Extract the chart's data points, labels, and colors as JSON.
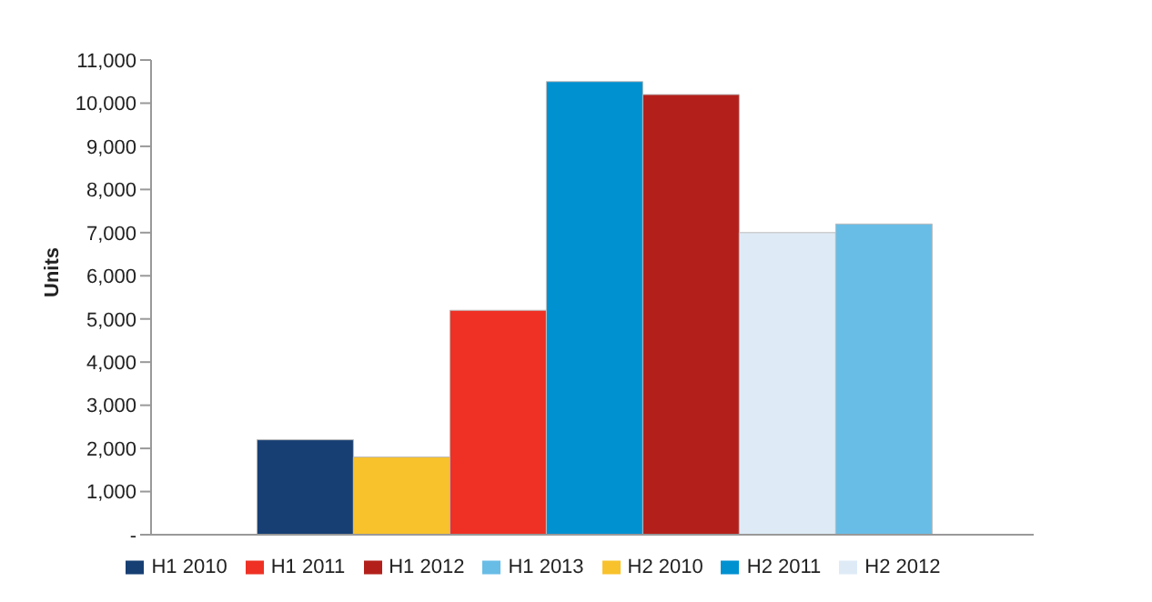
{
  "chart_data": {
    "type": "bar",
    "ylabel": "Units",
    "categories": [
      null
    ],
    "series": [
      {
        "name": "H1 2010",
        "color": "#173f73",
        "values": [
          2200
        ]
      },
      {
        "name": "H2 2010",
        "color": "#f8c22c",
        "values": [
          1800
        ]
      },
      {
        "name": "H1 2011",
        "color": "#ee3124",
        "values": [
          5200
        ]
      },
      {
        "name": "H2 2011",
        "color": "#0091d1",
        "values": [
          10500
        ]
      },
      {
        "name": "H1 2012",
        "color": "#b3201b",
        "values": [
          10200
        ]
      },
      {
        "name": "H2 2012",
        "color": "#deebf7",
        "values": [
          7000
        ]
      },
      {
        "name": "H1 2013",
        "color": "#68bde6",
        "values": [
          7200
        ]
      }
    ],
    "ylim": [
      0,
      11000
    ],
    "yticks": [
      {
        "value": 0,
        "label": "-"
      },
      {
        "value": 1000,
        "label": "1,000"
      },
      {
        "value": 2000,
        "label": "2,000"
      },
      {
        "value": 3000,
        "label": "3,000"
      },
      {
        "value": 4000,
        "label": "4,000"
      },
      {
        "value": 5000,
        "label": "5,000"
      },
      {
        "value": 6000,
        "label": "6,000"
      },
      {
        "value": 7000,
        "label": "7,000"
      },
      {
        "value": 8000,
        "label": "8,000"
      },
      {
        "value": 9000,
        "label": "9,000"
      },
      {
        "value": 10000,
        "label": "10,000"
      },
      {
        "value": 11000,
        "label": "11,000"
      }
    ],
    "grid": false,
    "legend": "bottom",
    "tick_labels": "y"
  }
}
